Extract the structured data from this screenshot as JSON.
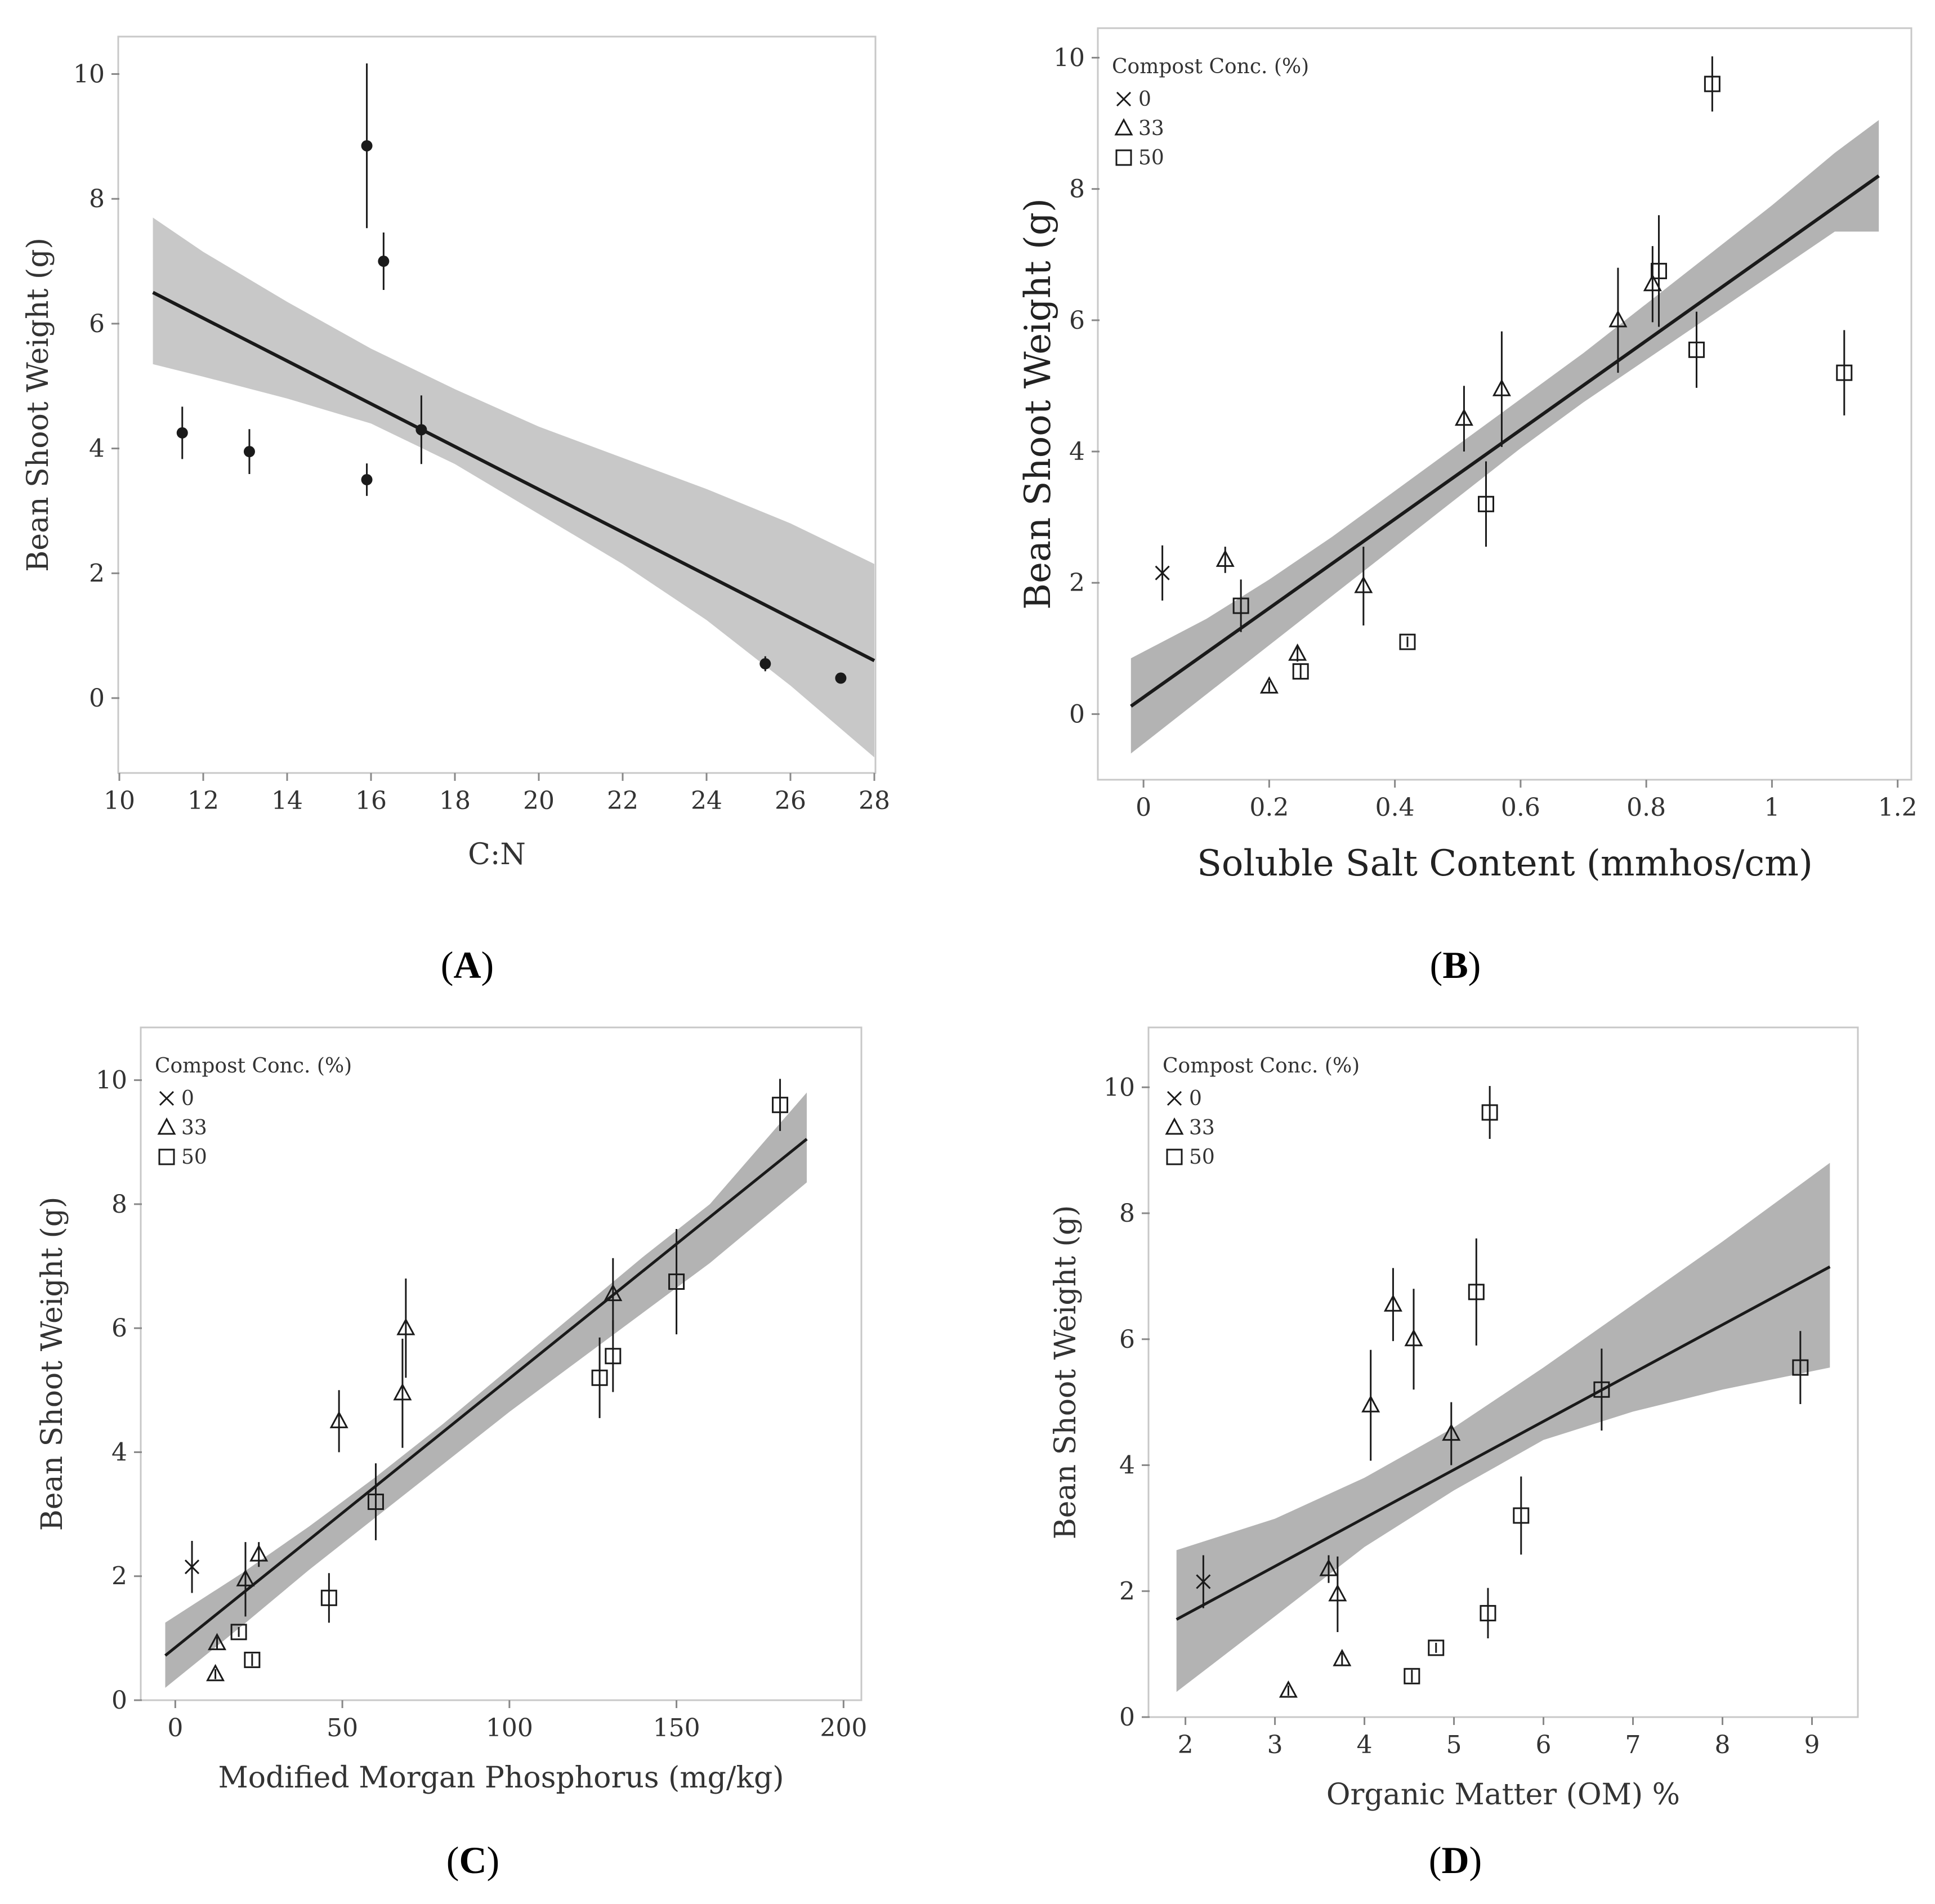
{
  "chart_data": [
    {
      "panel": "A",
      "type": "scatter",
      "panel_label": "(A)",
      "panel_letter": "A",
      "xlabel": "C:N",
      "ylabel": "Bean Shoot Weight (g)",
      "xlim": [
        10,
        28
      ],
      "ylim": [
        -1.2,
        10.6
      ],
      "xticks": [
        10,
        12,
        14,
        16,
        18,
        20,
        22,
        24,
        26,
        28
      ],
      "yticks": [
        0,
        2,
        4,
        6,
        8,
        10
      ],
      "points": [
        {
          "x": 11.5,
          "y": 4.25,
          "err": 0.42,
          "group": "none"
        },
        {
          "x": 13.1,
          "y": 3.95,
          "err": 0.36,
          "group": "none"
        },
        {
          "x": 15.9,
          "y": 8.85,
          "err": 1.32,
          "group": "none"
        },
        {
          "x": 15.9,
          "y": 3.5,
          "err": 0.26,
          "group": "none"
        },
        {
          "x": 16.3,
          "y": 7.0,
          "err": 0.46,
          "group": "none"
        },
        {
          "x": 17.2,
          "y": 4.3,
          "err": 0.55,
          "group": "none"
        },
        {
          "x": 25.4,
          "y": 0.55,
          "err": 0.12,
          "group": "none"
        },
        {
          "x": 27.2,
          "y": 0.32,
          "err": 0.08,
          "group": "none"
        }
      ],
      "fit": {
        "x": [
          10.8,
          28.0
        ],
        "y": [
          6.5,
          0.6
        ]
      },
      "band": {
        "x": [
          10.8,
          12,
          14,
          16,
          18,
          20,
          22,
          24,
          26,
          28
        ],
        "upper": [
          7.7,
          7.15,
          6.35,
          5.6,
          4.95,
          4.35,
          3.85,
          3.35,
          2.8,
          2.15
        ],
        "lower": [
          5.35,
          5.15,
          4.8,
          4.4,
          3.75,
          2.95,
          2.15,
          1.25,
          0.2,
          -0.95
        ]
      },
      "legend": null
    },
    {
      "panel": "B",
      "type": "scatter",
      "panel_label": "(B)",
      "panel_letter": "B",
      "xlabel": "Soluble Salt Content (mmhos/cm)",
      "ylabel": "Bean Shoot Weight (g)",
      "xlim": [
        -0.07,
        1.22
      ],
      "ylim": [
        -1.0,
        10.45
      ],
      "xticks": [
        0,
        0.2,
        0.4,
        0.6,
        0.8,
        1,
        1.2
      ],
      "yticks": [
        0,
        2,
        4,
        6,
        8,
        10
      ],
      "points": [
        {
          "x": 0.03,
          "y": 2.15,
          "err": 0.42,
          "group": "0"
        },
        {
          "x": 0.13,
          "y": 2.35,
          "err": 0.2,
          "group": "33"
        },
        {
          "x": 0.2,
          "y": 0.42,
          "err": 0.08,
          "group": "33"
        },
        {
          "x": 0.245,
          "y": 0.92,
          "err": 0.12,
          "group": "33"
        },
        {
          "x": 0.35,
          "y": 1.95,
          "err": 0.6,
          "group": "33"
        },
        {
          "x": 0.51,
          "y": 4.5,
          "err": 0.5,
          "group": "33"
        },
        {
          "x": 0.57,
          "y": 4.95,
          "err": 0.88,
          "group": "33"
        },
        {
          "x": 0.755,
          "y": 6.0,
          "err": 0.8,
          "group": "33"
        },
        {
          "x": 0.81,
          "y": 6.55,
          "err": 0.58,
          "group": "33"
        },
        {
          "x": 0.155,
          "y": 1.65,
          "err": 0.4,
          "group": "50"
        },
        {
          "x": 0.25,
          "y": 0.65,
          "err": 0.1,
          "group": "50"
        },
        {
          "x": 0.42,
          "y": 1.1,
          "err": 0.08,
          "group": "50"
        },
        {
          "x": 0.545,
          "y": 3.2,
          "err": 0.65,
          "group": "50"
        },
        {
          "x": 0.82,
          "y": 6.75,
          "err": 0.85,
          "group": "50"
        },
        {
          "x": 0.88,
          "y": 5.55,
          "err": 0.58,
          "group": "50"
        },
        {
          "x": 0.905,
          "y": 9.6,
          "err": 0.42,
          "group": "50"
        },
        {
          "x": 1.115,
          "y": 5.2,
          "err": 0.65,
          "group": "50"
        }
      ],
      "fit": {
        "x": [
          -0.02,
          1.17
        ],
        "y": [
          0.12,
          8.2
        ]
      },
      "band": {
        "x": [
          -0.02,
          0.1,
          0.2,
          0.3,
          0.4,
          0.5,
          0.6,
          0.7,
          0.8,
          0.9,
          1.0,
          1.1,
          1.17
        ],
        "upper": [
          0.85,
          1.45,
          2.05,
          2.7,
          3.4,
          4.1,
          4.8,
          5.5,
          6.25,
          7.0,
          7.75,
          8.55,
          9.05
        ],
        "lower": [
          -0.6,
          0.3,
          1.05,
          1.8,
          2.55,
          3.3,
          4.05,
          4.75,
          5.4,
          6.05,
          6.7,
          7.35,
          7.35
        ]
      },
      "legend": {
        "title": "Compost Conc. (%)",
        "entries": [
          "0",
          "33",
          "50"
        ],
        "position": "top-left"
      }
    },
    {
      "panel": "C",
      "type": "scatter",
      "panel_label": "(C)",
      "panel_letter": "C",
      "xlabel": "Modified Morgan Phosphorus (mg/kg)",
      "ylabel": "Bean Shoot Weight (g)",
      "xlim": [
        -10,
        205
      ],
      "ylim": [
        0,
        10.85
      ],
      "xticks": [
        0,
        50,
        100,
        150,
        200
      ],
      "yticks": [
        0,
        2,
        4,
        6,
        8,
        10
      ],
      "points": [
        {
          "x": 5,
          "y": 2.15,
          "err": 0.42,
          "group": "0"
        },
        {
          "x": 12,
          "y": 0.42,
          "err": 0.08,
          "group": "33"
        },
        {
          "x": 12.5,
          "y": 0.92,
          "err": 0.1,
          "group": "33"
        },
        {
          "x": 21,
          "y": 1.95,
          "err": 0.6,
          "group": "33"
        },
        {
          "x": 25,
          "y": 2.35,
          "err": 0.2,
          "group": "33"
        },
        {
          "x": 49,
          "y": 4.5,
          "err": 0.5,
          "group": "33"
        },
        {
          "x": 68,
          "y": 4.95,
          "err": 0.88,
          "group": "33"
        },
        {
          "x": 69,
          "y": 6.0,
          "err": 0.8,
          "group": "33"
        },
        {
          "x": 131,
          "y": 6.55,
          "err": 0.58,
          "group": "33"
        },
        {
          "x": 19,
          "y": 1.1,
          "err": 0.08,
          "group": "50"
        },
        {
          "x": 23,
          "y": 0.65,
          "err": 0.1,
          "group": "50"
        },
        {
          "x": 46,
          "y": 1.65,
          "err": 0.4,
          "group": "50"
        },
        {
          "x": 60,
          "y": 3.2,
          "err": 0.62,
          "group": "50"
        },
        {
          "x": 127,
          "y": 5.2,
          "err": 0.65,
          "group": "50"
        },
        {
          "x": 131,
          "y": 5.55,
          "err": 0.58,
          "group": "50"
        },
        {
          "x": 150,
          "y": 6.75,
          "err": 0.85,
          "group": "50"
        },
        {
          "x": 181,
          "y": 9.6,
          "err": 0.42,
          "group": "50"
        }
      ],
      "fit": {
        "x": [
          -3,
          189
        ],
        "y": [
          0.72,
          9.05
        ]
      },
      "band": {
        "x": [
          -3,
          20,
          40,
          60,
          80,
          100,
          120,
          140,
          160,
          189
        ],
        "upper": [
          1.25,
          2.05,
          2.8,
          3.6,
          4.45,
          5.35,
          6.25,
          7.15,
          8.0,
          9.8
        ],
        "lower": [
          0.2,
          1.2,
          2.1,
          2.95,
          3.8,
          4.65,
          5.45,
          6.25,
          7.05,
          8.35
        ]
      },
      "legend": {
        "title": "Compost Conc. (%)",
        "entries": [
          "0",
          "33",
          "50"
        ],
        "position": "top-left"
      }
    },
    {
      "panel": "D",
      "type": "scatter",
      "panel_label": "(D)",
      "panel_letter": "D",
      "xlabel": "Organic Matter (OM) %",
      "ylabel": "Bean Shoot Weight (g)",
      "xlim": [
        1.6,
        9.5
      ],
      "ylim": [
        0,
        10.95
      ],
      "xticks": [
        2,
        3,
        4,
        5,
        6,
        7,
        8,
        9
      ],
      "yticks": [
        0,
        2,
        4,
        6,
        8,
        10
      ],
      "points": [
        {
          "x": 2.2,
          "y": 2.15,
          "err": 0.42,
          "group": "0"
        },
        {
          "x": 3.15,
          "y": 0.42,
          "err": 0.08,
          "group": "33"
        },
        {
          "x": 3.6,
          "y": 2.35,
          "err": 0.22,
          "group": "33"
        },
        {
          "x": 3.7,
          "y": 1.95,
          "err": 0.6,
          "group": "33"
        },
        {
          "x": 3.75,
          "y": 0.92,
          "err": 0.1,
          "group": "33"
        },
        {
          "x": 4.07,
          "y": 4.95,
          "err": 0.88,
          "group": "33"
        },
        {
          "x": 4.32,
          "y": 6.55,
          "err": 0.58,
          "group": "33"
        },
        {
          "x": 4.55,
          "y": 6.0,
          "err": 0.8,
          "group": "33"
        },
        {
          "x": 4.97,
          "y": 4.5,
          "err": 0.5,
          "group": "33"
        },
        {
          "x": 4.53,
          "y": 0.65,
          "err": 0.1,
          "group": "50"
        },
        {
          "x": 4.8,
          "y": 1.1,
          "err": 0.08,
          "group": "50"
        },
        {
          "x": 5.25,
          "y": 6.75,
          "err": 0.85,
          "group": "50"
        },
        {
          "x": 5.38,
          "y": 1.65,
          "err": 0.4,
          "group": "50"
        },
        {
          "x": 5.4,
          "y": 9.6,
          "err": 0.42,
          "group": "50"
        },
        {
          "x": 5.75,
          "y": 3.2,
          "err": 0.62,
          "group": "50"
        },
        {
          "x": 6.65,
          "y": 5.2,
          "err": 0.65,
          "group": "50"
        },
        {
          "x": 8.87,
          "y": 5.55,
          "err": 0.58,
          "group": "50"
        }
      ],
      "fit": {
        "x": [
          1.9,
          9.2
        ],
        "y": [
          1.55,
          7.15
        ]
      },
      "band": {
        "x": [
          1.9,
          3,
          4,
          5,
          6,
          7,
          8,
          9.2
        ],
        "upper": [
          2.65,
          3.15,
          3.8,
          4.6,
          5.55,
          6.55,
          7.55,
          8.8
        ],
        "lower": [
          0.4,
          1.6,
          2.7,
          3.6,
          4.4,
          4.85,
          5.2,
          5.55
        ]
      },
      "legend": {
        "title": "Compost Conc. (%)",
        "entries": [
          "0",
          "33",
          "50"
        ],
        "position": "top-left"
      }
    }
  ],
  "colors": {
    "band": "#c8c8c8",
    "band_dark": "#b3b3b3",
    "line": "#1a1a1a",
    "marker": "#1a1a1a",
    "frame": "#c8c8c8",
    "axis": "#888888"
  }
}
